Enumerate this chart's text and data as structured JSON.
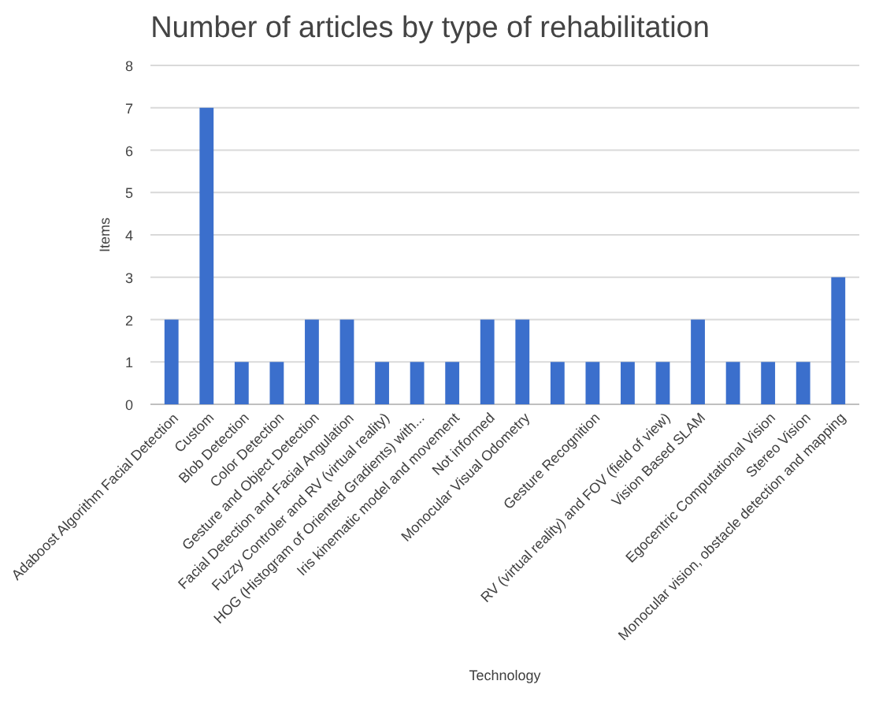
{
  "chart_data": {
    "type": "bar",
    "title": "Number of articles by type of rehabilitation",
    "xlabel": "Technology",
    "ylabel": "Items",
    "categories": [
      "Adaboost Algorithm Facial Detection",
      "Custom",
      "Blob Detection",
      "Color Detection",
      "Gesture and Object Detection",
      "Facial Detection and Facial Angulation",
      "Fuzzy Controler and RV (virtual reality)",
      "HOG (Histogram of Oriented Gradients) with...",
      "Iris kinematic model and movement",
      "Not informed",
      "Monocular Visual Odometry",
      null,
      "Gesture Recognition",
      null,
      "RV (virtual reality) and FOV (field of view)",
      "Vision Based SLAM",
      null,
      "Egocentric Computational Vision",
      "Stereo Vision",
      "Monocular vision, obstacle detection and mapping"
    ],
    "values": [
      2,
      7,
      1,
      1,
      2,
      2,
      1,
      1,
      1,
      2,
      2,
      1,
      1,
      1,
      1,
      2,
      1,
      1,
      1,
      3
    ],
    "color": "#3b6fcc",
    "ylim": [
      0,
      8
    ],
    "yticks": [
      0,
      1,
      2,
      3,
      4,
      5,
      6,
      7,
      8
    ],
    "grid": "y"
  }
}
